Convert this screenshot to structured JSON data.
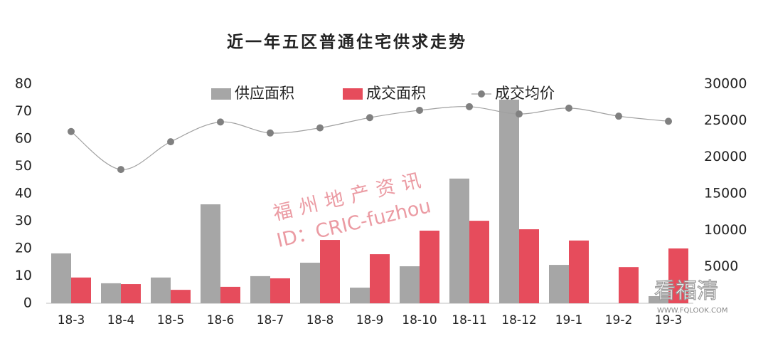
{
  "chart_data": {
    "type": "bar-line",
    "title": "近一年五区普通住宅供求走势",
    "categories": [
      "18-3",
      "18-4",
      "18-5",
      "18-6",
      "18-7",
      "18-8",
      "18-9",
      "18-10",
      "18-11",
      "18-12",
      "19-1",
      "19-2",
      "19-3"
    ],
    "series": [
      {
        "name": "供应面积",
        "type": "bar",
        "color": "#a6a6a6",
        "values": [
          18.2,
          7.3,
          9.4,
          36.1,
          9.9,
          14.8,
          5.7,
          13.5,
          45.5,
          74.3,
          14,
          0,
          2.6
        ]
      },
      {
        "name": "成交面积",
        "type": "bar",
        "color": "#e64c5c",
        "values": [
          9.4,
          7,
          4.9,
          6,
          9.1,
          23.1,
          17.9,
          26.5,
          30.1,
          27,
          22.9,
          13.2,
          20
        ]
      },
      {
        "name": "成交均价",
        "type": "line",
        "axis": "y2",
        "color": "#808080",
        "values": [
          23500,
          18300,
          22100,
          24800,
          23300,
          24000,
          25400,
          26400,
          26900,
          25900,
          26700,
          25600,
          24900
        ]
      }
    ],
    "ylim": [
      0,
      80
    ],
    "yticks": [
      0,
      10,
      20,
      30,
      40,
      50,
      60,
      70,
      80
    ],
    "y2lim": [
      0,
      30000
    ],
    "y2ticks": [
      5000,
      10000,
      15000,
      20000,
      25000,
      30000
    ],
    "legend": "top",
    "annotations": [
      "福州地产资讯",
      "ID：CRIC-fuzhou",
      "看福清",
      "WWW.FQLOOK.COM"
    ]
  }
}
